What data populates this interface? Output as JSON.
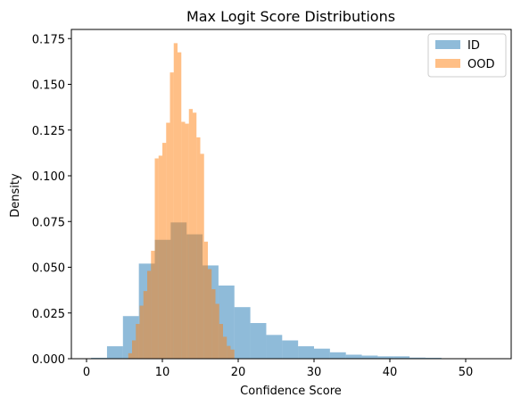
{
  "chart_data": {
    "type": "histogram",
    "title": "Max Logit Score Distributions",
    "xlabel": "Confidence Score",
    "ylabel": "Density",
    "xlim": [
      -2,
      56
    ],
    "ylim": [
      0,
      0.18
    ],
    "xticks": [
      0,
      10,
      20,
      30,
      40,
      50
    ],
    "yticks": [
      0.0,
      0.025,
      0.05,
      0.075,
      0.1,
      0.125,
      0.15,
      0.175
    ],
    "ytick_labels": [
      "0.000",
      "0.025",
      "0.050",
      "0.075",
      "0.100",
      "0.125",
      "0.150",
      "0.175"
    ],
    "legend_position": "top-right",
    "grid": false,
    "series": [
      {
        "name": "ID",
        "color": "#1f77b4",
        "alpha": 0.5,
        "bins": [
          [
            0.6,
            2.7,
            0.0005
          ],
          [
            2.7,
            4.8,
            0.0068
          ],
          [
            4.8,
            6.9,
            0.0233
          ],
          [
            6.9,
            9.0,
            0.052
          ],
          [
            9.0,
            11.1,
            0.065
          ],
          [
            11.1,
            13.2,
            0.0745
          ],
          [
            13.2,
            15.3,
            0.068
          ],
          [
            15.3,
            17.4,
            0.051
          ],
          [
            17.4,
            19.5,
            0.04
          ],
          [
            19.5,
            21.6,
            0.0282
          ],
          [
            21.6,
            23.7,
            0.0195
          ],
          [
            23.7,
            25.8,
            0.013
          ],
          [
            25.8,
            27.9,
            0.01
          ],
          [
            27.9,
            30.0,
            0.0068
          ],
          [
            30.0,
            32.1,
            0.0055
          ],
          [
            32.1,
            34.2,
            0.0035
          ],
          [
            34.2,
            36.3,
            0.0022
          ],
          [
            36.3,
            38.4,
            0.0017
          ],
          [
            38.4,
            40.5,
            0.0013
          ],
          [
            40.5,
            42.6,
            0.0013
          ],
          [
            42.6,
            44.7,
            0.0006
          ],
          [
            44.7,
            46.8,
            0.0005
          ],
          [
            46.8,
            48.9,
            0.0002
          ],
          [
            48.9,
            51.0,
            0.0001
          ],
          [
            51.0,
            53.1,
            0.0001
          ]
        ]
      },
      {
        "name": "OOD",
        "color": "#ff7f0e",
        "alpha": 0.5,
        "bins": [
          [
            5.5,
            6.0,
            0.003
          ],
          [
            6.0,
            6.5,
            0.01
          ],
          [
            6.5,
            7.0,
            0.019
          ],
          [
            7.0,
            7.5,
            0.029
          ],
          [
            7.5,
            8.0,
            0.037
          ],
          [
            8.0,
            8.5,
            0.048
          ],
          [
            8.5,
            9.0,
            0.059
          ],
          [
            9.0,
            9.5,
            0.1095
          ],
          [
            9.5,
            10.0,
            0.111
          ],
          [
            10.0,
            10.5,
            0.118
          ],
          [
            10.5,
            11.0,
            0.129
          ],
          [
            11.0,
            11.5,
            0.1565
          ],
          [
            11.5,
            12.0,
            0.1725
          ],
          [
            12.0,
            12.5,
            0.1675
          ],
          [
            12.5,
            13.0,
            0.1295
          ],
          [
            13.0,
            13.5,
            0.1285
          ],
          [
            13.5,
            14.0,
            0.1365
          ],
          [
            14.0,
            14.5,
            0.1345
          ],
          [
            14.5,
            15.0,
            0.121
          ],
          [
            15.0,
            15.5,
            0.112
          ],
          [
            15.5,
            16.0,
            0.064
          ],
          [
            16.0,
            16.5,
            0.049
          ],
          [
            16.5,
            17.0,
            0.038
          ],
          [
            17.0,
            17.5,
            0.03
          ],
          [
            17.5,
            18.0,
            0.019
          ],
          [
            18.0,
            18.5,
            0.012
          ],
          [
            18.5,
            19.0,
            0.007
          ],
          [
            19.0,
            19.5,
            0.005
          ]
        ]
      }
    ]
  }
}
